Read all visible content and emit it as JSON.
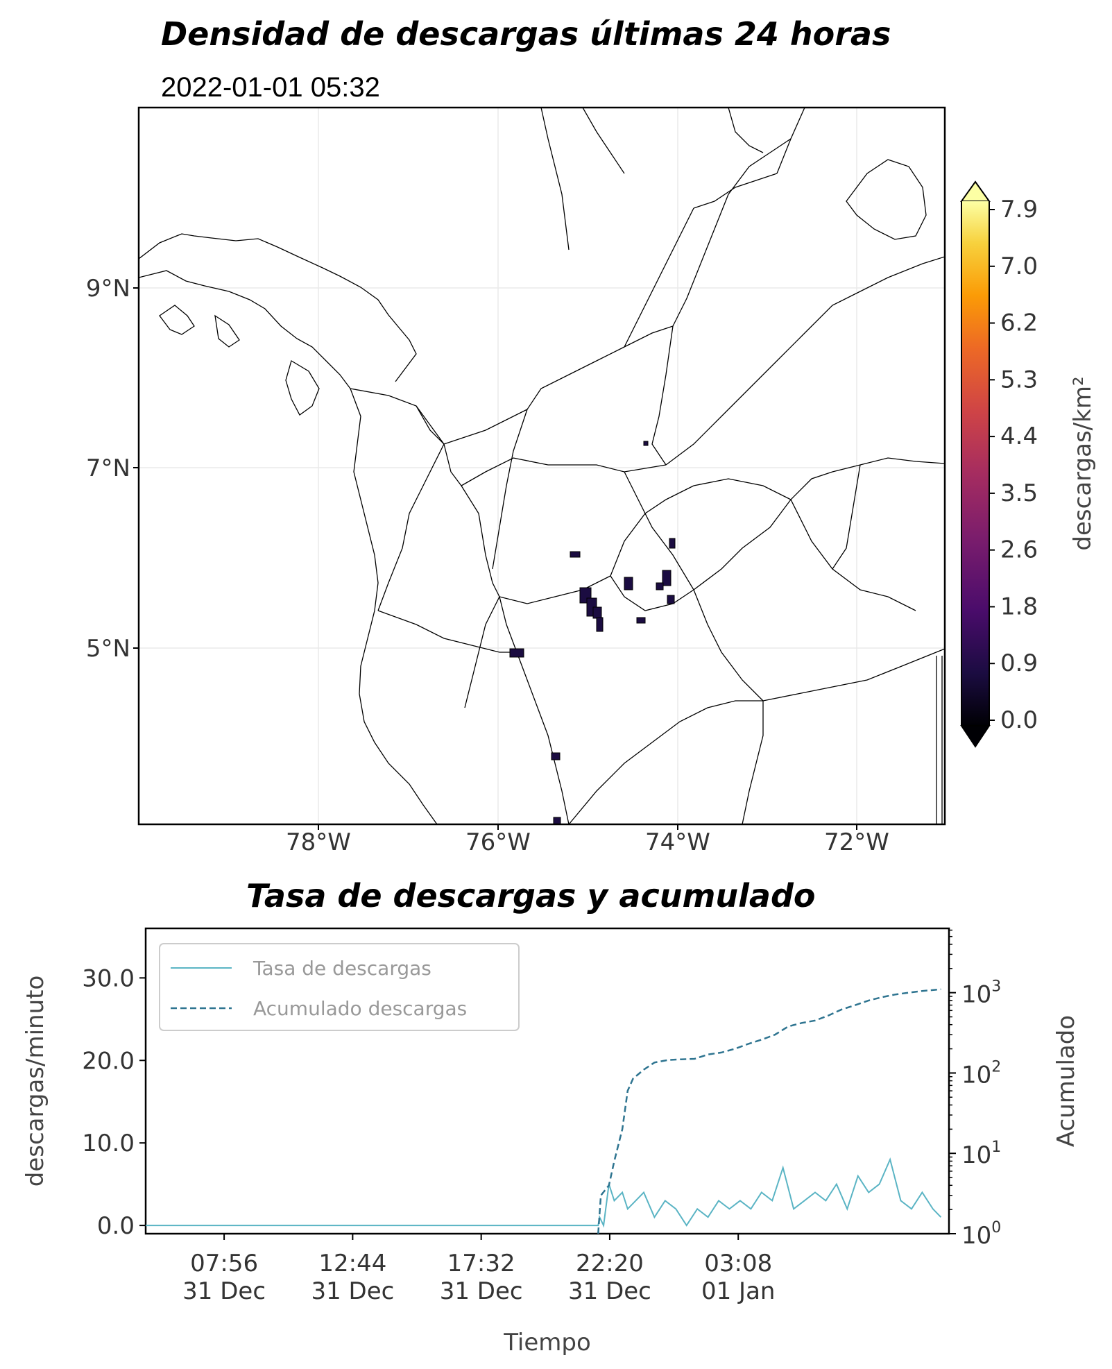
{
  "map": {
    "title": "Densidad de descargas últimas 24 horas",
    "timestamp": "2022-01-01 05:32",
    "lat_labels": [
      "9°N",
      "7°N",
      "5°N"
    ],
    "lon_labels": [
      "78°W",
      "76°W",
      "74°W",
      "72°W"
    ],
    "colorbar": {
      "label": "descargas/km²",
      "ticks": [
        "7.9",
        "7.0",
        "6.2",
        "5.3",
        "4.4",
        "3.5",
        "2.6",
        "1.8",
        "0.9",
        "0.0"
      ],
      "colormap": "inferno"
    }
  },
  "chart_data": {
    "type": "line",
    "title": "Tasa de descargas y acumulado",
    "xlabel": "Tiempo",
    "ylabel_left": "descargas/minuto",
    "ylabel_right": "Acumulado",
    "x_ticks": [
      {
        "time": "07:56",
        "date": "31 Dec"
      },
      {
        "time": "12:44",
        "date": "31 Dec"
      },
      {
        "time": "17:32",
        "date": "31 Dec"
      },
      {
        "time": "22:20",
        "date": "31 Dec"
      },
      {
        "time": "03:08",
        "date": "01 Jan"
      }
    ],
    "y_ticks_left": [
      "0.0",
      "10.0",
      "20.0",
      "30.0"
    ],
    "y_ticks_right": [
      {
        "base": "10",
        "exp": "0"
      },
      {
        "base": "10",
        "exp": "1"
      },
      {
        "base": "10",
        "exp": "2"
      },
      {
        "base": "10",
        "exp": "3"
      }
    ],
    "ylim_left": [
      -1,
      36
    ],
    "ylim_right_log10": [
      0,
      3.8
    ],
    "legend": {
      "position": "top-left",
      "entries": [
        "Tasa de descargas",
        "Acumulado descargas"
      ]
    },
    "series": [
      {
        "name": "Tasa de descargas",
        "axis": "left",
        "color": "#5ab4c4",
        "style": "solid",
        "x_hours": [
          0,
          16.9,
          16.95,
          17.1,
          17.3,
          17.5,
          17.8,
          18.0,
          18.3,
          18.6,
          19.0,
          19.4,
          19.8,
          20.2,
          20.6,
          21.0,
          21.4,
          21.8,
          22.2,
          22.6,
          23.0,
          23.4,
          23.8,
          24.2,
          24.6,
          25.0,
          25.4,
          25.8,
          26.2,
          26.6,
          27.0,
          27.4,
          27.8,
          28.2,
          28.6,
          29.0,
          29.4,
          29.7
        ],
        "y": [
          0,
          0,
          1,
          0,
          5,
          3,
          4,
          2,
          3,
          4,
          1,
          3,
          2,
          0,
          2,
          1,
          3,
          2,
          3,
          2,
          4,
          3,
          7,
          2,
          3,
          4,
          3,
          5,
          2,
          6,
          4,
          5,
          8,
          3,
          2,
          4,
          2,
          1
        ]
      },
      {
        "name": "Acumulado descargas",
        "axis": "right",
        "color": "#2e7490",
        "style": "dashed",
        "x_hours": [
          16.9,
          17.0,
          17.3,
          17.5,
          17.8,
          18.0,
          18.2,
          18.6,
          19.0,
          19.5,
          20.0,
          20.5,
          21.0,
          21.5,
          22.0,
          22.5,
          23.0,
          23.5,
          24.0,
          24.5,
          25.0,
          25.5,
          26.0,
          26.5,
          27.0,
          27.5,
          28.0,
          28.5,
          29.0,
          29.7
        ],
        "y": [
          1,
          3,
          4,
          8,
          20,
          60,
          85,
          110,
          135,
          145,
          148,
          150,
          170,
          180,
          200,
          230,
          260,
          300,
          380,
          420,
          450,
          520,
          620,
          700,
          800,
          880,
          950,
          1000,
          1050,
          1100
        ]
      }
    ]
  }
}
